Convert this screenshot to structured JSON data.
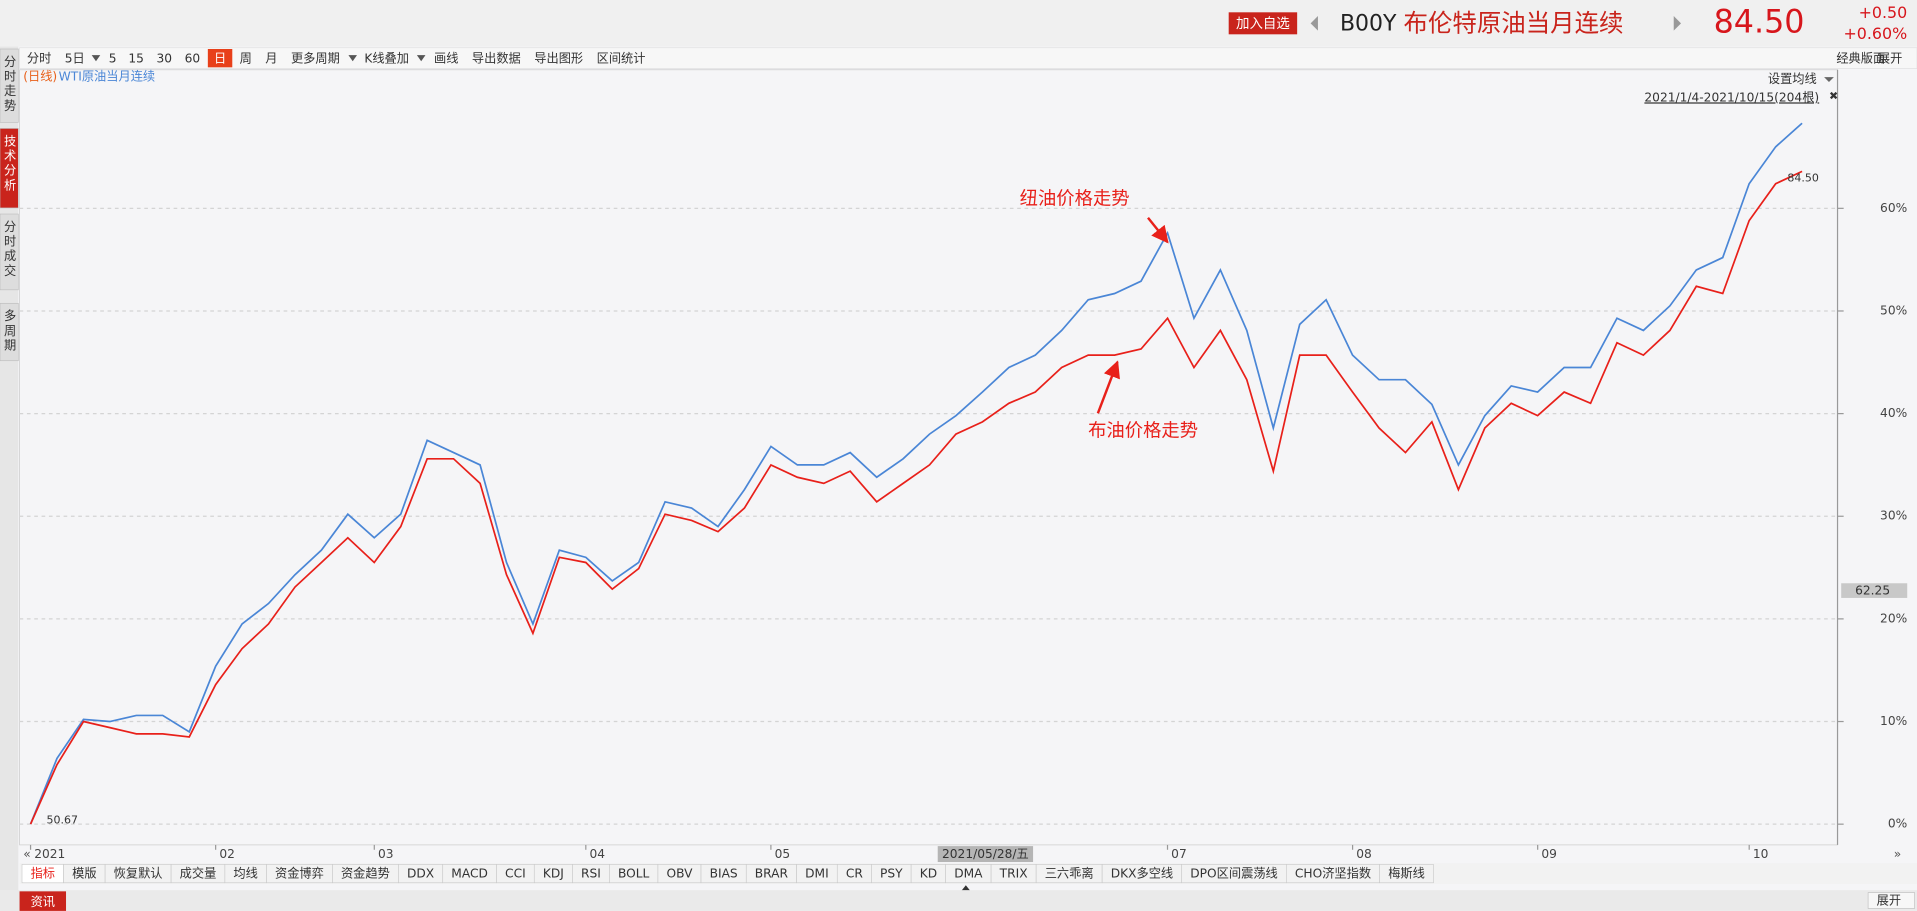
{
  "header": {
    "add_watchlist": "加入自选",
    "code": "B00Y",
    "name": "布伦特原油当月连续",
    "price": "84.50",
    "change": "+0.50",
    "change_pct": "+0.60%"
  },
  "side_tabs": [
    "分时走势",
    "技术分析",
    "分时成交",
    "多周期"
  ],
  "toolbar": [
    "分时",
    "5日",
    "5",
    "15",
    "30",
    "60",
    "日",
    "周",
    "月",
    "更多周期",
    "K线叠加",
    "画线",
    "导出数据",
    "导出图形",
    "区间统计"
  ],
  "toolbar_right": [
    "经典版面",
    "展开"
  ],
  "indicator_tabs": [
    "指标",
    "模版",
    "恢复默认",
    "成交量",
    "均线",
    "资金博弈",
    "资金趋势",
    "DDX",
    "MACD",
    "CCI",
    "KDJ",
    "RSI",
    "BOLL",
    "OBV",
    "BIAS",
    "BRAR",
    "DMI",
    "CR",
    "PSY",
    "KD",
    "DMA",
    "TRIX",
    "三六乖离",
    "DKX多空线",
    "DPO区间震荡线",
    "CHO济坚指数",
    "梅斯线"
  ],
  "bottom": {
    "news": "资讯",
    "expand": "展开"
  },
  "chart_data": {
    "type": "line",
    "period_label": "(日线)",
    "settings_label": "设置均线",
    "range_label": "2021/1/4-2021/10/15(204根)",
    "first_price_label": "50.67",
    "last_price_label": "84.50",
    "crosshair": {
      "x_label": "2021/05/28/五",
      "y_label": "62.25"
    },
    "annotations": [
      "纽油价格走势",
      "布油价格走势"
    ],
    "categories": [
      "2021",
      null,
      null,
      null,
      null,
      null,
      null,
      "02",
      null,
      null,
      null,
      null,
      null,
      "03",
      null,
      null,
      null,
      null,
      null,
      null,
      null,
      "04",
      null,
      null,
      null,
      null,
      null,
      null,
      "05",
      null,
      null,
      null,
      null,
      null,
      null,
      null,
      null,
      null,
      null,
      null,
      null,
      null,
      null,
      "07",
      null,
      null,
      null,
      null,
      null,
      null,
      "08",
      null,
      null,
      null,
      null,
      null,
      null,
      "09",
      null,
      null,
      null,
      null,
      null,
      null,
      null,
      "10",
      null,
      null
    ],
    "series": [
      {
        "color": "#e8201a",
        "values": [
          0,
          5.8,
          10,
          9.4,
          8.8,
          8.8,
          8.5,
          13.6,
          17.1,
          19.5,
          23.1,
          25.5,
          27.9,
          25.5,
          29,
          35.6,
          35.6,
          33.2,
          24.3,
          18.6,
          26,
          25.5,
          22.9,
          24.9,
          30.2,
          29.6,
          28.5,
          30.8,
          35,
          33.8,
          33.2,
          34.4,
          31.4,
          33.2,
          35,
          38,
          39.2,
          41,
          42.1,
          44.5,
          45.7,
          45.7,
          46.3,
          49.3,
          44.5,
          48.1,
          43.3,
          34.4,
          45.7,
          45.7,
          42.1,
          38.6,
          36.2,
          39.2,
          32.6,
          38.6,
          41,
          39.8,
          42.1,
          41,
          46.9,
          45.7,
          48.1,
          52.4,
          51.7,
          58.8,
          62.4,
          63.6
        ]
      },
      {
        "name": "WTI原油当月连续",
        "color": "#4a86d6",
        "values": [
          0,
          6.4,
          10.2,
          10,
          10.6,
          10.6,
          9,
          15.4,
          19.5,
          21.5,
          24.3,
          26.7,
          30.2,
          27.9,
          30.2,
          37.4,
          36.2,
          35,
          25.5,
          19.5,
          26.7,
          26,
          23.7,
          25.5,
          31.4,
          30.8,
          29,
          32.6,
          36.8,
          35,
          35,
          36.2,
          33.8,
          35.6,
          38,
          39.8,
          42.1,
          44.5,
          45.7,
          48.1,
          51.1,
          51.7,
          52.9,
          57.6,
          49.3,
          54,
          48.1,
          38.6,
          48.7,
          51.1,
          45.7,
          43.3,
          43.3,
          40.9,
          35,
          39.8,
          42.7,
          42.1,
          44.5,
          44.5,
          49.3,
          48.1,
          50.5,
          54,
          55.2,
          62.4,
          66,
          68.3
        ]
      }
    ],
    "ylim": [
      -1.9,
      73.5
    ],
    "yticks": [
      {
        "value": 0,
        "label": "0%"
      },
      {
        "value": 10,
        "label": "10%"
      },
      {
        "value": 20,
        "label": "20%"
      },
      {
        "value": 30,
        "label": "30%"
      },
      {
        "value": 40,
        "label": "40%"
      },
      {
        "value": 50,
        "label": "50%"
      },
      {
        "value": 60,
        "label": "60%"
      }
    ],
    "grid": true
  }
}
